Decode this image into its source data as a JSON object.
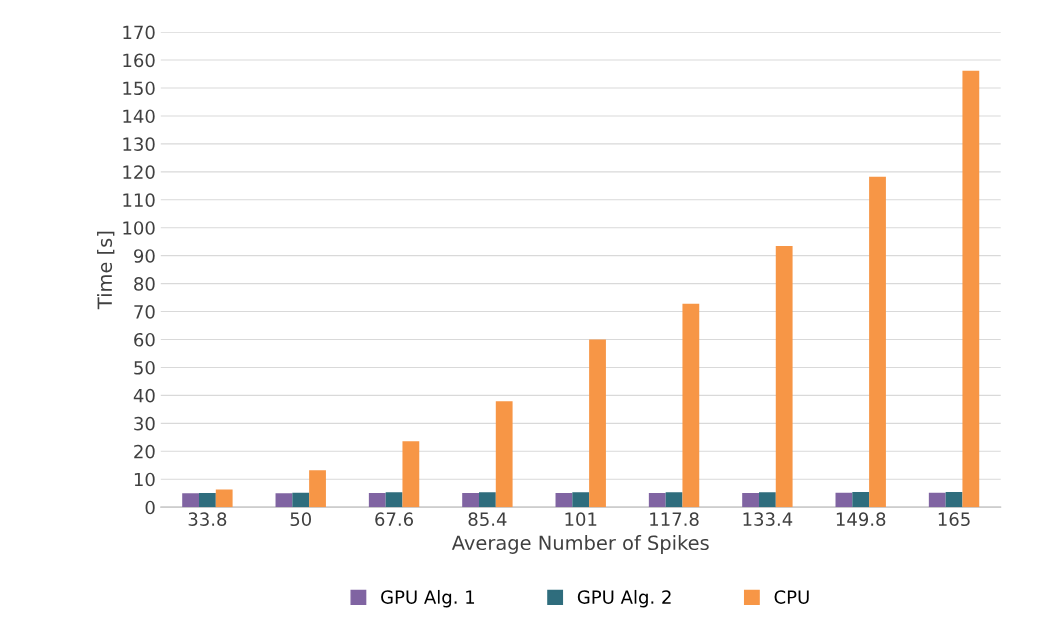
{
  "chart_data": {
    "type": "bar",
    "xlabel": "Average Number of Spikes",
    "ylabel": "Time [s]",
    "categories": [
      "33.8",
      "50",
      "67.6",
      "85.4",
      "101",
      "117.8",
      "133.4",
      "149.8",
      "165"
    ],
    "series": [
      {
        "name": "GPU Alg. 1",
        "color": "#8064a2",
        "values": [
          5.0,
          5.0,
          5.1,
          5.1,
          5.1,
          5.1,
          5.1,
          5.2,
          5.2
        ]
      },
      {
        "name": "GPU Alg. 2",
        "color": "#2f6d7d",
        "values": [
          5.1,
          5.2,
          5.3,
          5.3,
          5.3,
          5.3,
          5.3,
          5.4,
          5.4
        ]
      },
      {
        "name": "CPU",
        "color": "#f79646",
        "values": [
          6.3,
          13.2,
          23.6,
          37.9,
          60.0,
          72.8,
          93.5,
          118.2,
          156.2
        ]
      }
    ],
    "ylim": [
      0,
      170
    ],
    "yticks": [
      0,
      10,
      20,
      30,
      40,
      50,
      60,
      70,
      80,
      90,
      100,
      110,
      120,
      130,
      140,
      150,
      160,
      170
    ],
    "grid": "y",
    "legend": "bottom"
  }
}
